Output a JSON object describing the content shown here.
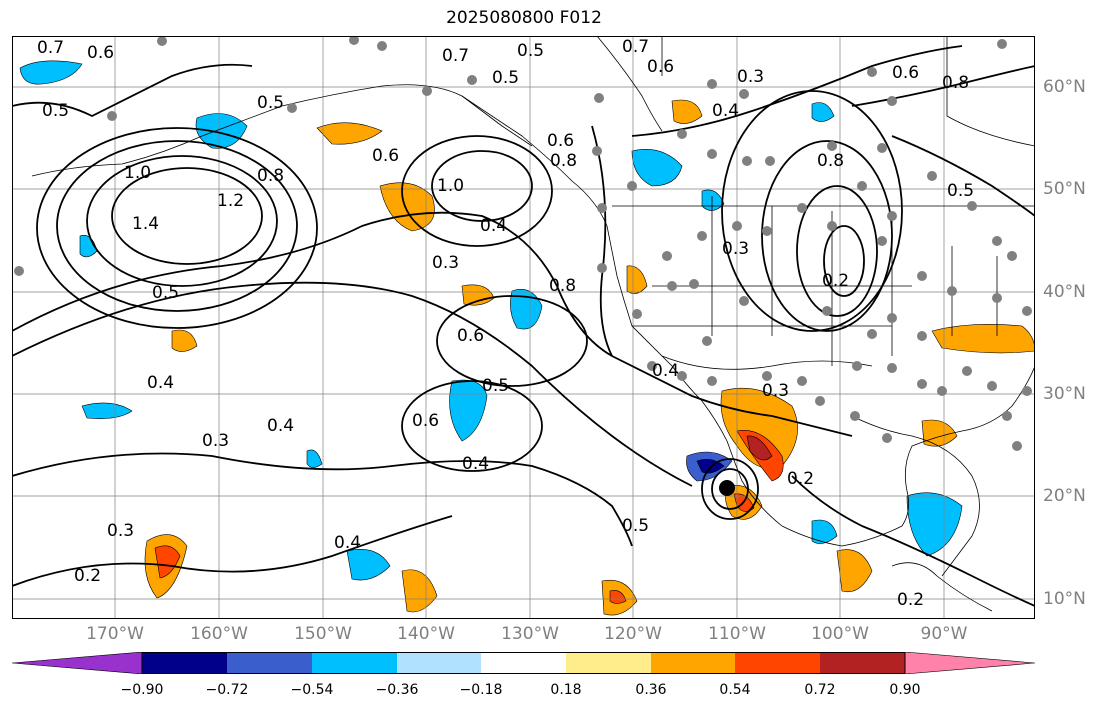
{
  "title": "2025080800 F012",
  "longitude_labels": [
    "170°W",
    "160°W",
    "150°W",
    "140°W",
    "130°W",
    "120°W",
    "110°W",
    "100°W",
    "90°W"
  ],
  "latitude_labels": [
    "60°N",
    "50°N",
    "40°N",
    "30°N",
    "20°N",
    "10°N"
  ],
  "colorbar": {
    "ticks": [
      "−0.90",
      "−0.72",
      "−0.54",
      "−0.36",
      "−0.18",
      "0.18",
      "0.36",
      "0.54",
      "0.72",
      "0.90"
    ],
    "colors": [
      "#9932cc",
      "#00008b",
      "#3a5fcd",
      "#00bfff",
      "#b0e2ff",
      "#ffffff",
      "#ffec8b",
      "#ffa500",
      "#ff4500",
      "#b22222",
      "#ff82ab"
    ]
  },
  "contour_labels": [
    "0.7",
    "0.6",
    "0.5",
    "0.5",
    "0.7",
    "0.5",
    "0.7",
    "0.6",
    "0.3",
    "0.6",
    "0.8",
    "0.5",
    "0.6",
    "1.0",
    "0.8",
    "1.2",
    "1.4",
    "0.6",
    "1.0",
    "0.4",
    "0.3",
    "0.8",
    "0.6",
    "0.5",
    "0.6",
    "0.4",
    "0.3",
    "0.4",
    "0.5",
    "0.4",
    "0.4",
    "0.3",
    "0.2",
    "0.2",
    "0.2",
    "0.3",
    "0.4",
    "0.8",
    "0.5",
    "0.4",
    "0.2",
    "0.5",
    "0.8",
    "0.3"
  ]
}
